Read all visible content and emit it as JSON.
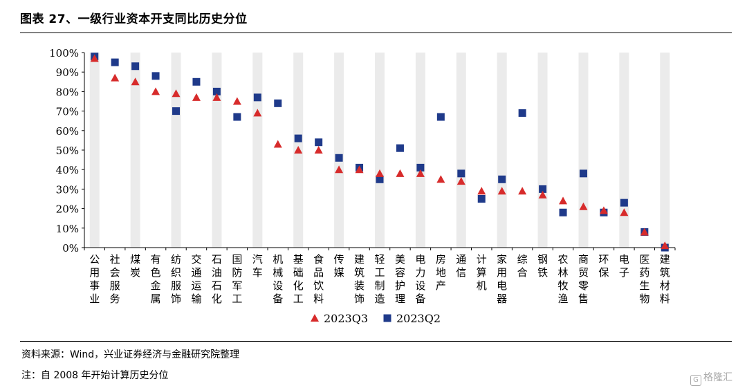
{
  "title": "图表 27、一级行业资本开支同比历史分位",
  "source": "资料来源：Wind，兴业证券经济与金融研究院整理",
  "note": "注：自 2008 年开始计算历史分位",
  "watermark": "格隆汇",
  "chart_data": {
    "type": "scatter",
    "title": "图表 27、一级行业资本开支同比历史分位",
    "xlabel": "",
    "ylabel": "",
    "ylim": [
      0,
      100
    ],
    "yticks": [
      "0%",
      "10%",
      "20%",
      "30%",
      "40%",
      "50%",
      "60%",
      "70%",
      "80%",
      "90%",
      "100%"
    ],
    "grid": "alternating vertical bands",
    "legend_position": "bottom",
    "categories": [
      "公用事业",
      "社会服务",
      "煤炭",
      "有色金属",
      "纺织服饰",
      "交通运输",
      "石油石化",
      "国防军工",
      "汽车",
      "机械设备",
      "基础化工",
      "食品饮料",
      "传媒",
      "建筑装饰",
      "轻工制造",
      "美容护理",
      "电力设备",
      "房地产",
      "通信",
      "计算机",
      "家用电器",
      "综合",
      "钢铁",
      "农林牧渔",
      "商贸零售",
      "环保",
      "电子",
      "医药生物",
      "建筑材料"
    ],
    "series": [
      {
        "name": "2023Q3",
        "marker": "triangle",
        "color": "#d72b2b",
        "values": [
          97,
          87,
          85,
          80,
          79,
          77,
          77,
          75,
          69,
          53,
          50,
          50,
          40,
          40,
          38,
          38,
          38,
          35,
          34,
          29,
          29,
          29,
          27,
          24,
          21,
          19,
          18,
          8,
          1
        ]
      },
      {
        "name": "2023Q2",
        "marker": "square",
        "color": "#1f3a8a",
        "values": [
          98,
          95,
          93,
          88,
          70,
          85,
          80,
          67,
          77,
          74,
          56,
          54,
          46,
          41,
          35,
          51,
          41,
          67,
          38,
          25,
          35,
          69,
          30,
          18,
          38,
          18,
          23,
          8,
          0
        ]
      }
    ]
  }
}
